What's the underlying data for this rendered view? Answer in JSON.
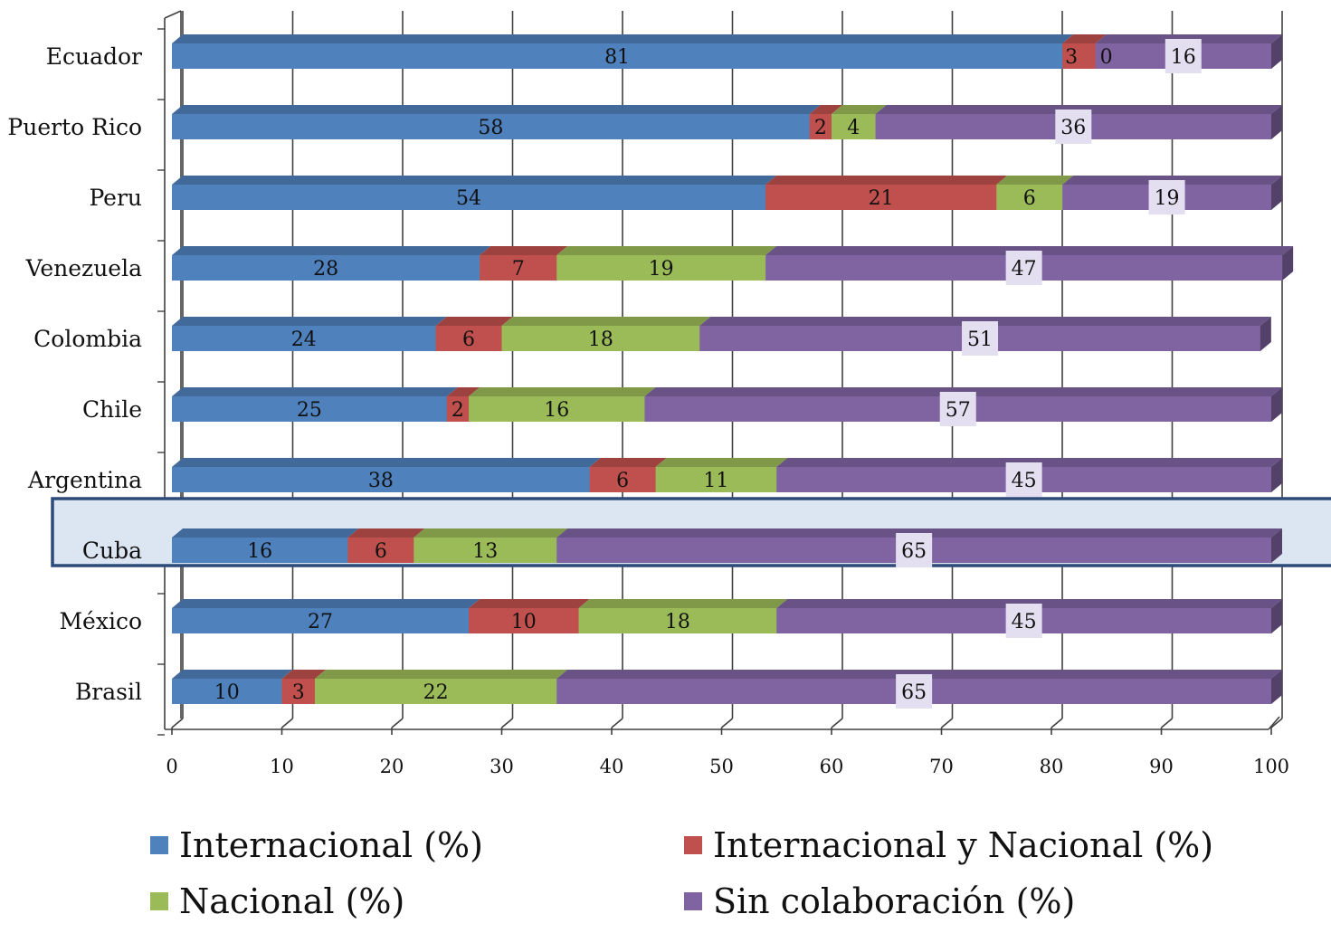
{
  "chart_data": {
    "type": "bar",
    "orientation": "horizontal",
    "stacked": true,
    "style": "3d",
    "categories": [
      "Ecuador",
      "Puerto Rico",
      "Peru",
      "Venezuela",
      "Colombia",
      "Chile",
      "Argentina",
      "Cuba",
      "México",
      "Brasil"
    ],
    "series": [
      {
        "name": "Internacional (%)",
        "color": "#4f81bd",
        "values": [
          81,
          58,
          54,
          28,
          24,
          25,
          38,
          16,
          27,
          10
        ],
        "labels": [
          "81",
          "58",
          "54",
          "28",
          "24",
          "25",
          "38",
          "16",
          "27",
          "10"
        ]
      },
      {
        "name": "Internacional y Nacional (%)",
        "color": "#c0504d",
        "values": [
          3,
          2,
          21,
          7,
          6,
          2,
          6,
          6,
          10,
          3
        ],
        "labels": [
          "3",
          "2",
          "21",
          "7",
          "6",
          "2",
          "6",
          "6",
          "10",
          "3"
        ]
      },
      {
        "name": "Nacional (%)",
        "color": "#9bbb59",
        "values": [
          0,
          4,
          6,
          19,
          18,
          16,
          11,
          13,
          18,
          22
        ],
        "labels": [
          "0",
          "4",
          "6",
          "19",
          "18",
          "16",
          "11",
          "13",
          "18",
          "22"
        ]
      },
      {
        "name": "Sin colaboración  (%)",
        "color": "#8064a2",
        "values": [
          16,
          36,
          19,
          47,
          51,
          57,
          45,
          65,
          45,
          65
        ],
        "labels": [
          "16",
          "36",
          "19",
          "47",
          "51",
          "57",
          "45",
          "65",
          "45",
          "65"
        ]
      }
    ],
    "xlim": [
      0,
      100
    ],
    "xticks": [
      "0",
      "10",
      "20",
      "30",
      "40",
      "50",
      "60",
      "70",
      "80",
      "90",
      "100"
    ],
    "grid": true,
    "legend": "bottom",
    "highlight": "Cuba",
    "highlight_color": "#2e4a7a"
  }
}
